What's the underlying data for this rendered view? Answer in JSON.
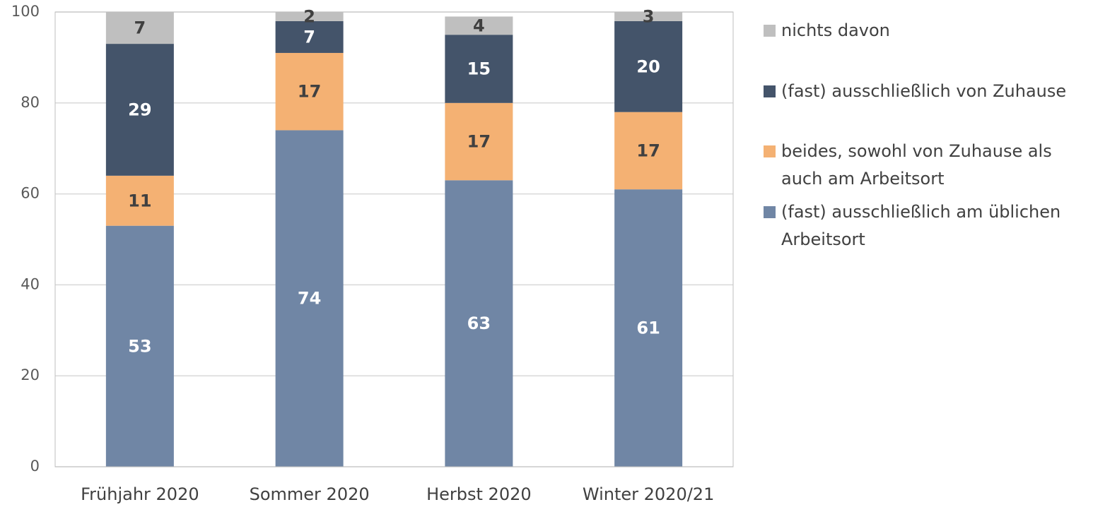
{
  "chart_data": {
    "type": "stacked_bar",
    "categories": [
      "Frühjahr 2020",
      "Sommer 2020",
      "Herbst 2020",
      "Winter 2020/21"
    ],
    "series": [
      {
        "name": "(fast) ausschließlich am üblichen Arbeitsort",
        "color": "#7086a5",
        "label_color": "#ffffff",
        "values": [
          53,
          74,
          63,
          61
        ]
      },
      {
        "name": "beides, sowohl von Zuhause als auch am Arbeitsort",
        "color": "#f4b173",
        "label_color": "#404040",
        "values": [
          11,
          17,
          17,
          17
        ]
      },
      {
        "name": "(fast) ausschließlich von Zuhause",
        "color": "#44546a",
        "label_color": "#ffffff",
        "values": [
          29,
          7,
          15,
          20
        ]
      },
      {
        "name": "nichts davon",
        "color": "#bfbfbf",
        "label_color": "#404040",
        "values": [
          7,
          2,
          4,
          3
        ]
      }
    ],
    "ylim": [
      0,
      100
    ],
    "yticks": [
      0,
      20,
      40,
      60,
      80,
      100
    ],
    "grid": true,
    "legend": "right"
  }
}
